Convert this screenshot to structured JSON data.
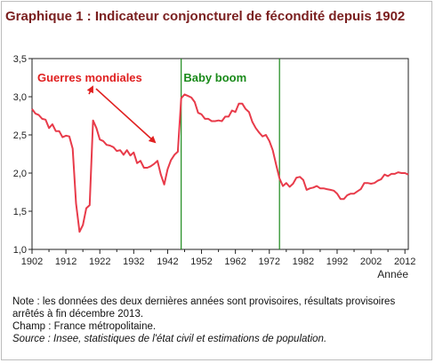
{
  "title": "Graphique 1 : Indicateur conjoncturel de fécondité depuis 1902",
  "notes": {
    "note": "Note : les données des deux dernières années sont provisoires, résultats provisoires arrêtés à fin décembre 2013.",
    "champ": "Champ : France métropolitaine.",
    "source": "Source : Insee, statistiques de l'état civil et estimations de population."
  },
  "chart_data": {
    "type": "line",
    "title": "Graphique 1 : Indicateur conjoncturel de fécondité depuis 1902",
    "xlabel": "Année",
    "ylabel": "",
    "xlim": [
      1902,
      2013
    ],
    "ylim": [
      1.0,
      3.5
    ],
    "x_ticks": [
      "1902",
      "1912",
      "1922",
      "1932",
      "1942",
      "1952",
      "1962",
      "1972",
      "1982",
      "1992",
      "2002",
      "2012"
    ],
    "y_ticks": [
      "1,0",
      "1,5",
      "2,0",
      "2,5",
      "3,0",
      "3,5"
    ],
    "grid": false,
    "line_color": "#e83b4a",
    "annotations": [
      {
        "text": "Guerres mondiales",
        "color": "#e02020"
      },
      {
        "text": "Baby boom",
        "color": "#1a8a1a",
        "span": [
          1946,
          1975
        ]
      }
    ],
    "series": [
      {
        "x": [
          1902,
          1903,
          1904,
          1905,
          1906,
          1907,
          1908,
          1909,
          1910,
          1911,
          1912,
          1913,
          1914,
          1915,
          1916,
          1917,
          1918,
          1919,
          1920,
          1921,
          1922,
          1923,
          1924,
          1925,
          1926,
          1927,
          1928,
          1929,
          1930,
          1931,
          1932,
          1933,
          1934,
          1935,
          1936,
          1937,
          1938,
          1939,
          1940,
          1941,
          1942,
          1943,
          1944,
          1945,
          1946,
          1947,
          1948,
          1949,
          1950,
          1951,
          1952,
          1953,
          1954,
          1955,
          1956,
          1957,
          1958,
          1959,
          1960,
          1961,
          1962,
          1963,
          1964,
          1965,
          1966,
          1967,
          1968,
          1969,
          1970,
          1971,
          1972,
          1973,
          1974,
          1975,
          1976,
          1977,
          1978,
          1979,
          1980,
          1981,
          1982,
          1983,
          1984,
          1985,
          1986,
          1987,
          1988,
          1989,
          1990,
          1991,
          1992,
          1993,
          1994,
          1995,
          1996,
          1997,
          1998,
          1999,
          2000,
          2001,
          2002,
          2003,
          2004,
          2005,
          2006,
          2007,
          2008,
          2009,
          2010,
          2011,
          2012,
          2013
        ],
        "values": [
          2.84,
          2.78,
          2.76,
          2.71,
          2.7,
          2.59,
          2.64,
          2.55,
          2.55,
          2.47,
          2.49,
          2.48,
          2.32,
          1.6,
          1.23,
          1.32,
          1.54,
          1.58,
          2.69,
          2.59,
          2.44,
          2.42,
          2.37,
          2.36,
          2.34,
          2.29,
          2.3,
          2.24,
          2.3,
          2.23,
          2.27,
          2.13,
          2.16,
          2.07,
          2.07,
          2.09,
          2.12,
          2.16,
          1.98,
          1.85,
          2.05,
          2.17,
          2.24,
          2.28,
          2.98,
          3.03,
          3.01,
          2.99,
          2.93,
          2.79,
          2.77,
          2.71,
          2.71,
          2.68,
          2.68,
          2.69,
          2.68,
          2.74,
          2.74,
          2.82,
          2.8,
          2.91,
          2.91,
          2.84,
          2.8,
          2.67,
          2.59,
          2.53,
          2.48,
          2.5,
          2.42,
          2.3,
          2.11,
          1.93,
          1.83,
          1.87,
          1.82,
          1.86,
          1.94,
          1.95,
          1.91,
          1.78,
          1.8,
          1.81,
          1.83,
          1.8,
          1.8,
          1.79,
          1.78,
          1.77,
          1.73,
          1.66,
          1.66,
          1.71,
          1.73,
          1.73,
          1.76,
          1.79,
          1.87,
          1.87,
          1.86,
          1.87,
          1.9,
          1.92,
          1.98,
          1.96,
          1.99,
          1.99,
          2.01,
          2.0,
          2.0,
          1.98
        ]
      }
    ]
  }
}
